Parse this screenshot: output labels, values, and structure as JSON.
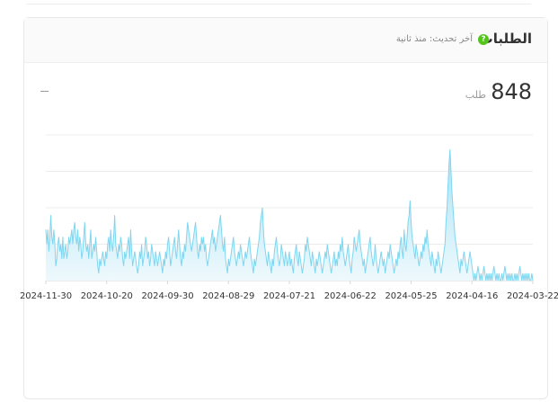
{
  "card": {
    "title": "الطلبات",
    "update_text": "آخر تحديث: منذ ثانية",
    "help_icon": "?",
    "value": "848",
    "unit": "طلب",
    "dash": "—"
  },
  "colors": {
    "line": "#7fd6f0",
    "area_top": "#a8e2f5",
    "area_bottom": "#eef9fd",
    "grid": "#ececec",
    "help": "#52c41a"
  },
  "chart_data": {
    "type": "area",
    "x_tick_labels": [
      "2024-11-30",
      "2024-10-20",
      "2024-09-30",
      "2024-08-29",
      "2024-07-21",
      "2024-06-22",
      "2024-05-25",
      "2024-04-16",
      "2024-03-22"
    ],
    "ylim": [
      0,
      20
    ],
    "grid": true,
    "values": [
      7,
      5,
      7,
      4,
      6,
      9,
      6,
      5,
      7,
      5,
      2,
      3,
      5,
      6,
      4,
      5,
      3,
      6,
      3,
      4,
      5,
      3,
      4,
      6,
      5,
      6,
      7,
      5,
      7,
      8,
      6,
      5,
      7,
      4,
      6,
      5,
      3,
      4,
      6,
      8,
      5,
      4,
      5,
      3,
      5,
      7,
      3,
      4,
      5,
      4,
      6,
      4,
      2,
      1,
      3,
      2,
      3,
      4,
      3,
      2,
      4,
      3,
      5,
      6,
      4,
      7,
      5,
      4,
      6,
      9,
      5,
      4,
      3,
      5,
      4,
      6,
      5,
      3,
      2,
      4,
      3,
      4,
      5,
      6,
      3,
      7,
      4,
      2,
      3,
      4,
      3,
      2,
      1,
      2,
      4,
      3,
      5,
      2,
      3,
      4,
      6,
      5,
      3,
      4,
      2,
      3,
      5,
      4,
      3,
      2,
      4,
      3,
      2,
      3,
      4,
      3,
      2,
      1,
      3,
      2,
      4,
      3,
      5,
      6,
      4,
      2,
      3,
      4,
      5,
      6,
      4,
      3,
      5,
      7,
      5,
      3,
      2,
      4,
      3,
      5,
      4,
      6,
      8,
      7,
      6,
      5,
      4,
      5,
      6,
      7,
      8,
      6,
      4,
      3,
      5,
      4,
      6,
      5,
      6,
      4,
      5,
      3,
      2,
      3,
      4,
      5,
      6,
      7,
      5,
      6,
      4,
      5,
      6,
      7,
      8,
      9,
      7,
      5,
      4,
      6,
      3,
      2,
      1,
      3,
      2,
      3,
      4,
      5,
      6,
      4,
      3,
      2,
      3,
      4,
      3,
      5,
      4,
      3,
      2,
      3,
      4,
      3,
      4,
      5,
      6,
      4,
      3,
      2,
      1,
      3,
      2,
      3,
      4,
      5,
      6,
      8,
      9,
      10,
      7,
      5,
      4,
      3,
      2,
      4,
      3,
      2,
      1,
      3,
      2,
      4,
      5,
      6,
      4,
      3,
      2,
      3,
      5,
      4,
      3,
      2,
      4,
      3,
      2,
      3,
      4,
      2,
      3,
      2,
      1,
      3,
      4,
      5,
      3,
      2,
      4,
      3,
      2,
      1,
      2,
      3,
      5,
      4,
      6,
      5,
      4,
      3,
      2,
      4,
      3,
      2,
      1,
      3,
      2,
      3,
      4,
      3,
      2,
      1,
      2,
      3,
      4,
      3,
      5,
      4,
      3,
      2,
      1,
      2,
      3,
      4,
      2,
      3,
      2,
      4,
      3,
      5,
      4,
      6,
      4,
      3,
      2,
      3,
      4,
      5,
      3,
      2,
      1,
      3,
      4,
      6,
      5,
      4,
      5,
      6,
      7,
      5,
      4,
      3,
      2,
      3,
      1,
      2,
      3,
      4,
      5,
      6,
      4,
      3,
      2,
      3,
      5,
      3,
      2,
      1,
      2,
      3,
      4,
      3,
      2,
      3,
      1,
      2,
      3,
      4,
      3,
      5,
      4,
      3,
      2,
      1,
      2,
      3,
      2,
      4,
      3,
      5,
      6,
      4,
      3,
      7,
      5,
      4,
      6,
      8,
      9,
      11,
      8,
      6,
      5,
      4,
      3,
      5,
      4,
      3,
      2,
      3,
      4,
      3,
      5,
      4,
      6,
      5,
      7,
      5,
      4,
      3,
      2,
      4,
      3,
      2,
      1,
      3,
      2,
      4,
      3,
      2,
      1,
      2,
      3,
      4,
      5,
      8,
      10,
      13,
      16,
      18,
      15,
      12,
      10,
      8,
      6,
      5,
      4,
      3,
      2,
      1,
      3,
      2,
      3,
      4,
      3,
      2,
      1,
      2,
      3,
      4,
      3,
      2,
      1,
      0,
      1,
      0,
      1,
      2,
      1,
      0,
      1,
      0,
      1,
      2,
      1,
      0,
      1,
      0,
      1,
      0,
      1,
      0,
      1,
      2,
      1,
      0,
      1,
      0,
      1,
      0,
      0,
      1,
      0,
      1,
      2,
      1,
      0,
      1,
      0,
      1,
      0,
      1,
      0,
      0,
      1,
      0,
      1,
      0,
      1,
      2,
      1,
      0,
      1,
      0,
      1,
      0,
      1,
      0,
      1,
      0,
      0,
      1,
      0
    ]
  }
}
